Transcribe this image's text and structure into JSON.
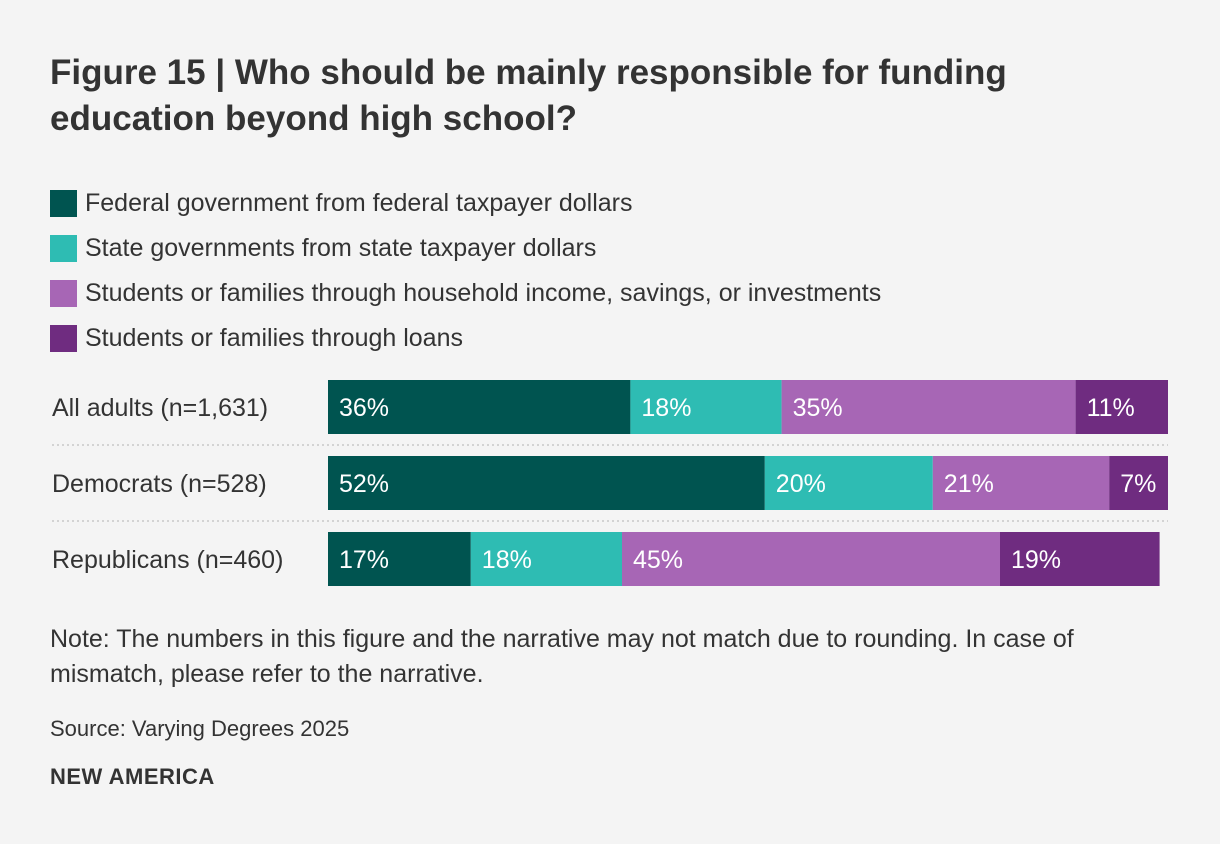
{
  "title": "Figure 15 | Who should be mainly responsible for funding education beyond high school?",
  "legend": [
    {
      "label": "Federal government from federal taxpayer dollars",
      "color": "#005450"
    },
    {
      "label": "State governments from state taxpayer dollars",
      "color": "#2ebcb3"
    },
    {
      "label": "Students or families through household income, savings, or investments",
      "color": "#a766b5"
    },
    {
      "label": "Students or families through loans",
      "color": "#6f2c80"
    }
  ],
  "chart_data": {
    "type": "bar",
    "orientation": "horizontal",
    "stacked": true,
    "categories": [
      "All adults (n=1,631)",
      "Democrats (n=528)",
      "Republicans (n=460)"
    ],
    "series": [
      {
        "name": "Federal government from federal taxpayer dollars",
        "color": "#005450",
        "values": [
          36,
          52,
          17
        ],
        "labels": [
          "36%",
          "52%",
          "17%"
        ]
      },
      {
        "name": "State governments from state taxpayer dollars",
        "color": "#2ebcb3",
        "values": [
          18,
          20,
          18
        ],
        "labels": [
          "18%",
          "20%",
          "18%"
        ]
      },
      {
        "name": "Students or families through household income, savings, or investments",
        "color": "#a766b5",
        "values": [
          35,
          21,
          45
        ],
        "labels": [
          "35%",
          "21%",
          "45%"
        ]
      },
      {
        "name": "Students or families through loans",
        "color": "#6f2c80",
        "values": [
          11,
          7,
          19
        ],
        "labels": [
          "11%",
          "7%",
          "19%"
        ]
      }
    ],
    "unit": "%",
    "xlim": [
      0,
      100
    ]
  },
  "note": "Note: The numbers in this figure and the narrative may not match due to rounding. In case of mismatch, please refer to the narrative.",
  "source": "Source: Varying Degrees 2025",
  "brand": "NEW AMERICA"
}
